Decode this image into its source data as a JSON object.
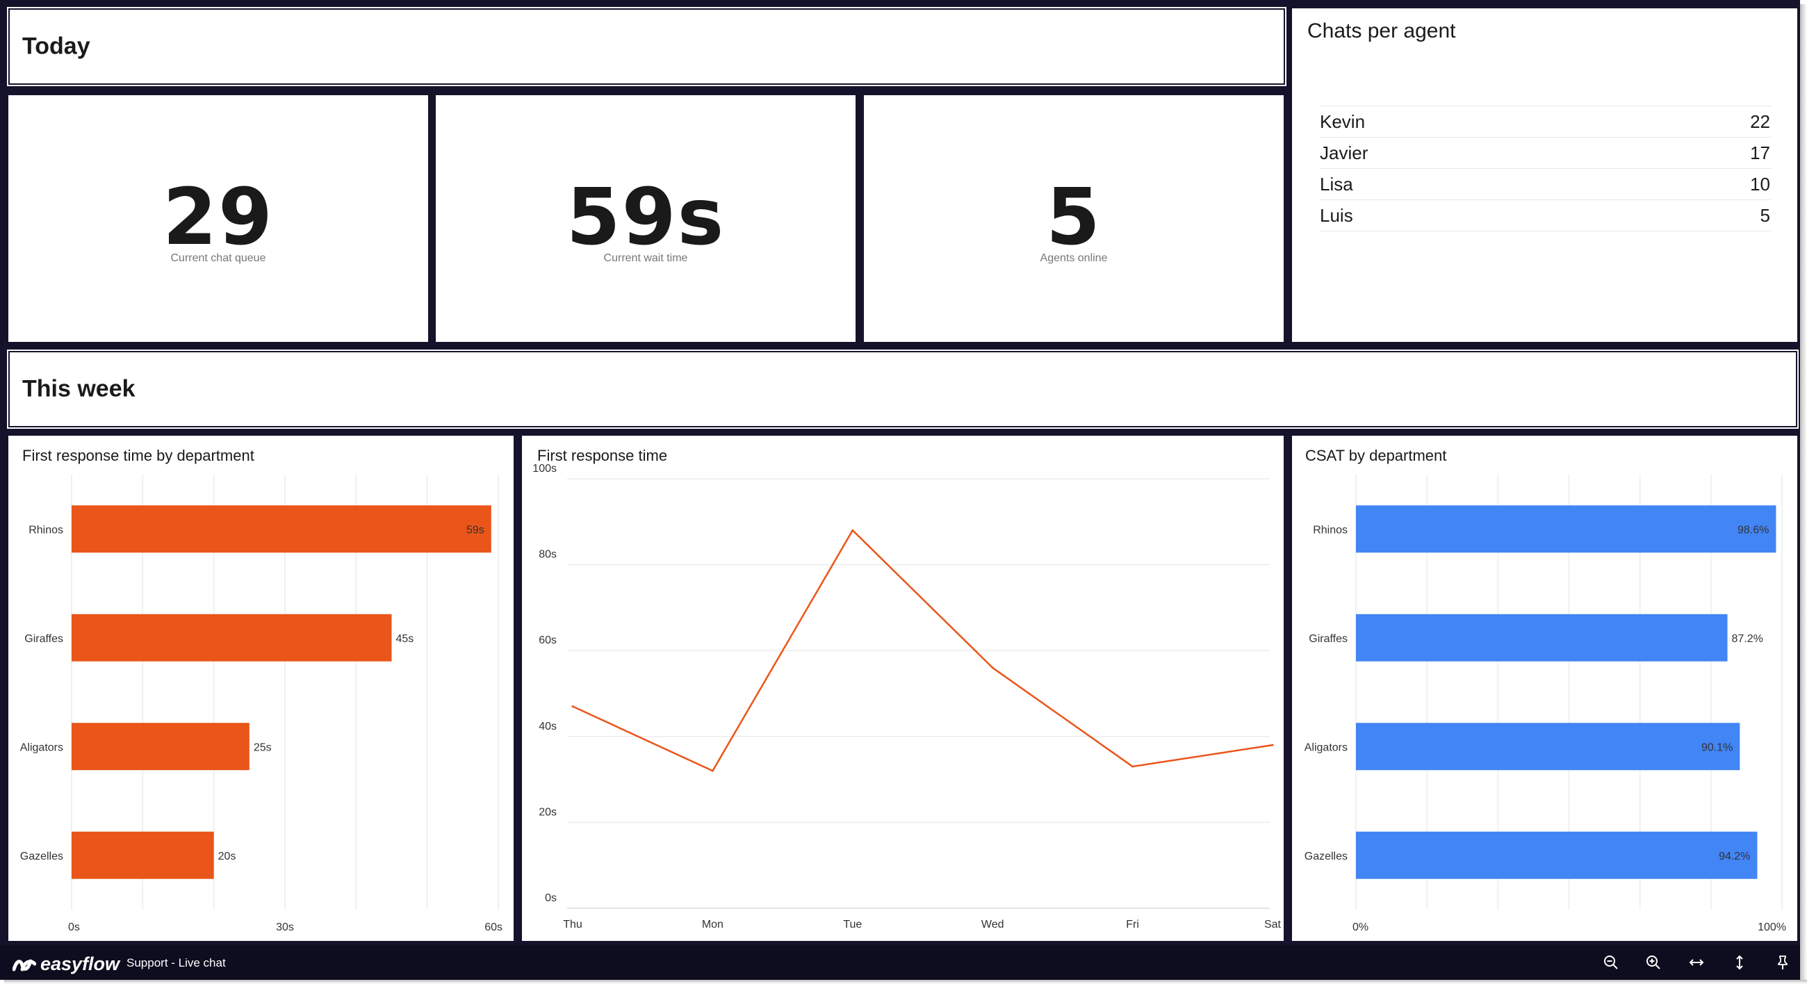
{
  "colors": {
    "frame": "#15132b",
    "footer": "#0e0d1f",
    "orange": "#ea5519",
    "blue": "#4285f4"
  },
  "sections": {
    "today": "Today",
    "this_week": "This week"
  },
  "kpis": [
    {
      "value": "29",
      "label": "Current chat queue"
    },
    {
      "value": "59s",
      "label": "Current wait time"
    },
    {
      "value": "5",
      "label": "Agents online"
    }
  ],
  "chats_per_agent": {
    "title": "Chats per agent",
    "rows": [
      {
        "name": "Kevin",
        "count": "22"
      },
      {
        "name": "Javier",
        "count": "17"
      },
      {
        "name": "Lisa",
        "count": "10"
      },
      {
        "name": "Luis",
        "count": "5"
      }
    ]
  },
  "chart_titles": {
    "frt_dept": "First response time by department",
    "frt": "First response time",
    "csat": "CSAT by department"
  },
  "chart_data": [
    {
      "type": "bar",
      "orientation": "horizontal",
      "title": "First response time by department",
      "categories": [
        "Rhinos",
        "Giraffes",
        "Aligators",
        "Gazelles"
      ],
      "values": [
        59,
        45,
        25,
        20
      ],
      "value_labels": [
        "59s",
        "45s",
        "25s",
        "20s"
      ],
      "xlim": [
        0,
        60
      ],
      "ticks": [
        0,
        30,
        60
      ],
      "tick_labels": [
        "0s",
        "30s",
        "60s"
      ],
      "grid": true,
      "color": "#ea5519"
    },
    {
      "type": "line",
      "title": "First response time",
      "x": [
        "Thu",
        "Mon",
        "Tue",
        "Wed",
        "Fri",
        "Sat"
      ],
      "values": [
        47,
        32,
        88,
        56,
        33,
        38
      ],
      "ylim": [
        0,
        100
      ],
      "yticks": [
        0,
        20,
        40,
        60,
        80,
        100
      ],
      "ytick_labels": [
        "0s",
        "20s",
        "40s",
        "60s",
        "80s",
        "100s"
      ],
      "grid": true,
      "color": "#ea5519"
    },
    {
      "type": "bar",
      "orientation": "horizontal",
      "title": "CSAT by department",
      "categories": [
        "Rhinos",
        "Giraffes",
        "Aligators",
        "Gazelles"
      ],
      "values": [
        98.6,
        87.2,
        90.1,
        94.2
      ],
      "value_labels": [
        "98.6%",
        "87.2%",
        "90.1%",
        "94.2%"
      ],
      "xlim": [
        0,
        100
      ],
      "ticks": [
        0,
        100
      ],
      "tick_labels": [
        "0%",
        "100%"
      ],
      "grid": true,
      "color": "#4285f4"
    }
  ],
  "footer": {
    "logo_text": "easyflow",
    "title": "Support - Live chat",
    "icons": [
      "zoom-out-icon",
      "zoom-in-icon",
      "fit-width-icon",
      "fit-height-icon",
      "pin-icon"
    ]
  }
}
